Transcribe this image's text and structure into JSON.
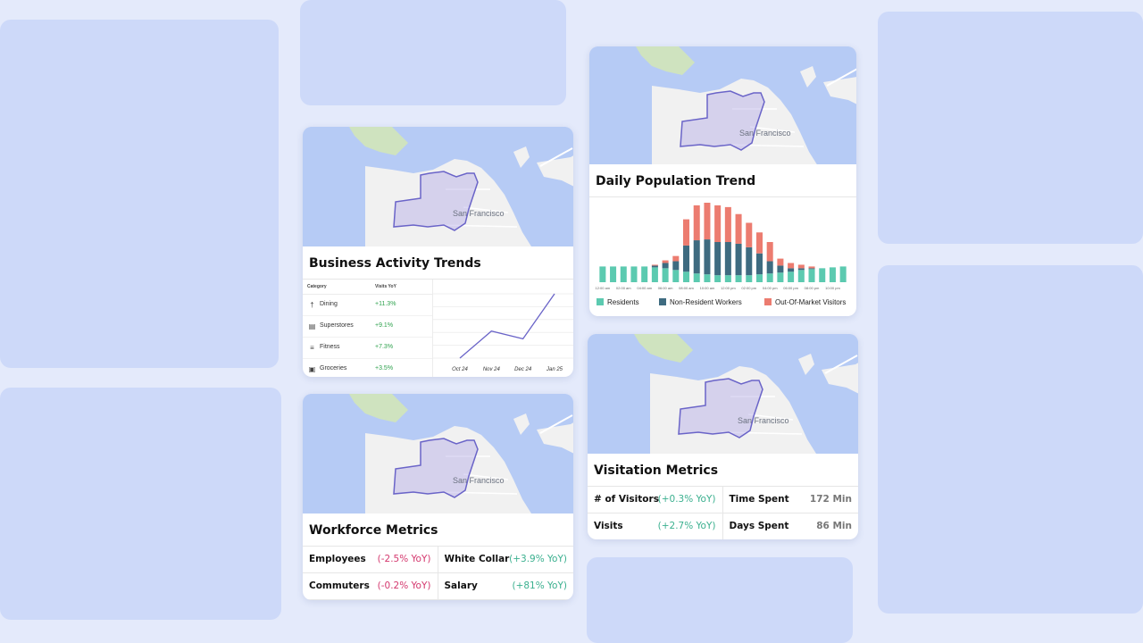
{
  "colors": {
    "background": "#e4eafb",
    "ghost_tile": "#cdd9f9",
    "map_water": "#b6cbf5",
    "map_land": "#f1f1f1",
    "map_park": "#cfe3bf",
    "district": "#6a64c8",
    "positive": "#3bb08f",
    "negative": "#d4386e",
    "residents": "#5ccab0",
    "non_resident_workers": "#3e6b80",
    "out_of_market_visitors": "#ec7c70"
  },
  "map_label": "San Francisco",
  "business": {
    "title": "Business Activity Trends",
    "col_category": "Category",
    "col_visits": "Visits YoY",
    "rows": [
      {
        "name": "Dining",
        "value": "+11.3%",
        "icon": "dining-icon"
      },
      {
        "name": "Superstores",
        "value": "+9.1%",
        "icon": "cart-icon"
      },
      {
        "name": "Fitness",
        "value": "+7.3%",
        "icon": "dumbbell-icon"
      },
      {
        "name": "Groceries",
        "value": "+3.5%",
        "icon": "grocery-icon"
      }
    ]
  },
  "workforce": {
    "title": "Workforce Metrics",
    "cells": [
      {
        "label": "Employees",
        "value": "(-2.5% YoY)",
        "tone": "neg"
      },
      {
        "label": "White Collar",
        "value": "(+3.9% YoY)",
        "tone": "pos"
      },
      {
        "label": "Commuters",
        "value": "(-0.2% YoY)",
        "tone": "neg"
      },
      {
        "label": "Salary",
        "value": "(+81% YoY)",
        "tone": "pos"
      }
    ]
  },
  "population": {
    "title": "Daily Population Trend",
    "legend": [
      "Residents",
      "Non-Resident Workers",
      "Out-Of-Market Visitors"
    ]
  },
  "visitation": {
    "title": "Visitation Metrics",
    "cells": [
      {
        "label": "# of Visitors",
        "value": "(+0.3% YoY)",
        "tone": "pos"
      },
      {
        "label": "Time Spent",
        "value": "172 Min",
        "tone": "plain"
      },
      {
        "label": "Visits",
        "value": "(+2.7% YoY)",
        "tone": "pos"
      },
      {
        "label": "Days Spent",
        "value": "86 Min",
        "tone": "plain"
      }
    ]
  },
  "chart_data": [
    {
      "type": "line",
      "x": [
        "Oct 24",
        "Nov 24",
        "Dec 24",
        "Jan 25"
      ],
      "series": [
        {
          "values": [
            0,
            42,
            30,
            100
          ]
        }
      ],
      "ylim": [
        0,
        100
      ],
      "grid": true
    },
    {
      "type": "bar",
      "stacked": true,
      "categories": [
        "12:00 am",
        "",
        "02:00 am",
        "",
        "04:00 am",
        "",
        "06:00 am",
        "",
        "08:00 am",
        "",
        "10:00 am",
        "",
        "12:00 pm",
        "",
        "02:00 pm",
        "",
        "04:00 pm",
        "",
        "06:00 pm",
        "",
        "08:00 pm",
        "",
        "10:00 pm",
        ""
      ],
      "series": [
        {
          "name": "Residents",
          "values": [
            18,
            18,
            18,
            18,
            18,
            17,
            16,
            14,
            12,
            10,
            9,
            8,
            8,
            8,
            8,
            9,
            10,
            11,
            12,
            14,
            15,
            16,
            17,
            18
          ]
        },
        {
          "name": "Non-Resident Workers",
          "values": [
            0,
            0,
            0,
            0,
            0,
            2,
            6,
            10,
            30,
            38,
            40,
            38,
            38,
            36,
            32,
            24,
            14,
            8,
            4,
            2,
            1,
            0,
            0,
            0
          ]
        },
        {
          "name": "Out-Of-Market Visitors",
          "values": [
            0,
            0,
            0,
            0,
            0,
            1,
            3,
            6,
            30,
            40,
            42,
            42,
            40,
            34,
            28,
            24,
            22,
            8,
            6,
            4,
            2,
            0,
            0,
            0
          ]
        }
      ],
      "legend": "bottom"
    }
  ]
}
